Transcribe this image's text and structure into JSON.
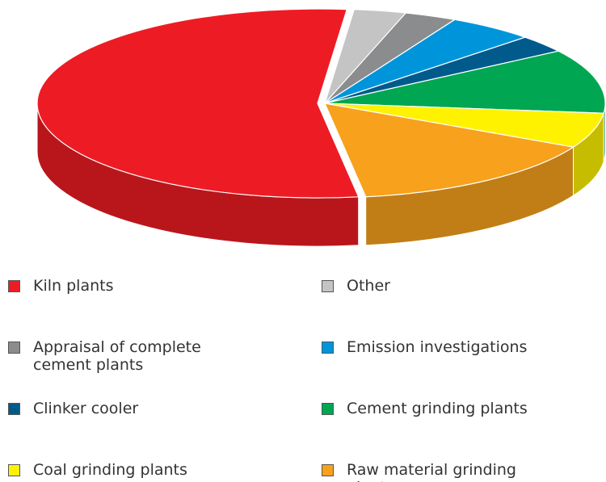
{
  "chart_data": {
    "type": "pie",
    "categories": [
      "Kiln plants",
      "Other",
      "Appraisal of complete cement plants",
      "Emission investigations",
      "Clinker cooler",
      "Cement grinding plants",
      "Coal grinding plants",
      "Raw material grinding plants"
    ],
    "values": [
      54,
      3,
      3,
      5,
      3,
      11,
      6,
      15
    ],
    "colors": [
      "#ed1c24",
      "#c4c4c4",
      "#8a8c8e",
      "#0095da",
      "#005b8c",
      "#00a651",
      "#fff200",
      "#f7a11c"
    ]
  }
}
